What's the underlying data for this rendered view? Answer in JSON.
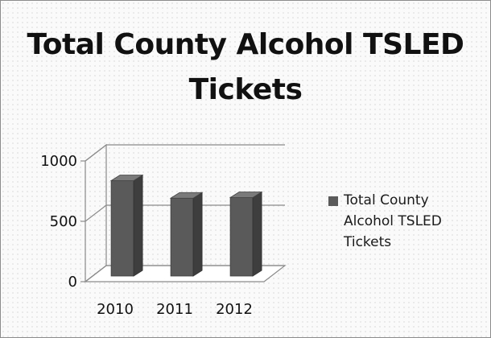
{
  "chart_data": {
    "type": "bar",
    "title": "Total County Alcohol TSLED Tickets",
    "categories": [
      "2010",
      "2011",
      "2012"
    ],
    "series": [
      {
        "name": "Total County Alcohol TSLED Tickets",
        "values": [
          790,
          645,
          650
        ],
        "color": "#5a5a5a"
      }
    ],
    "ylim": [
      0,
      1000
    ],
    "yticks": [
      "0",
      "500",
      "1000"
    ],
    "grid": true,
    "legend": "right",
    "style": "3d-column"
  }
}
